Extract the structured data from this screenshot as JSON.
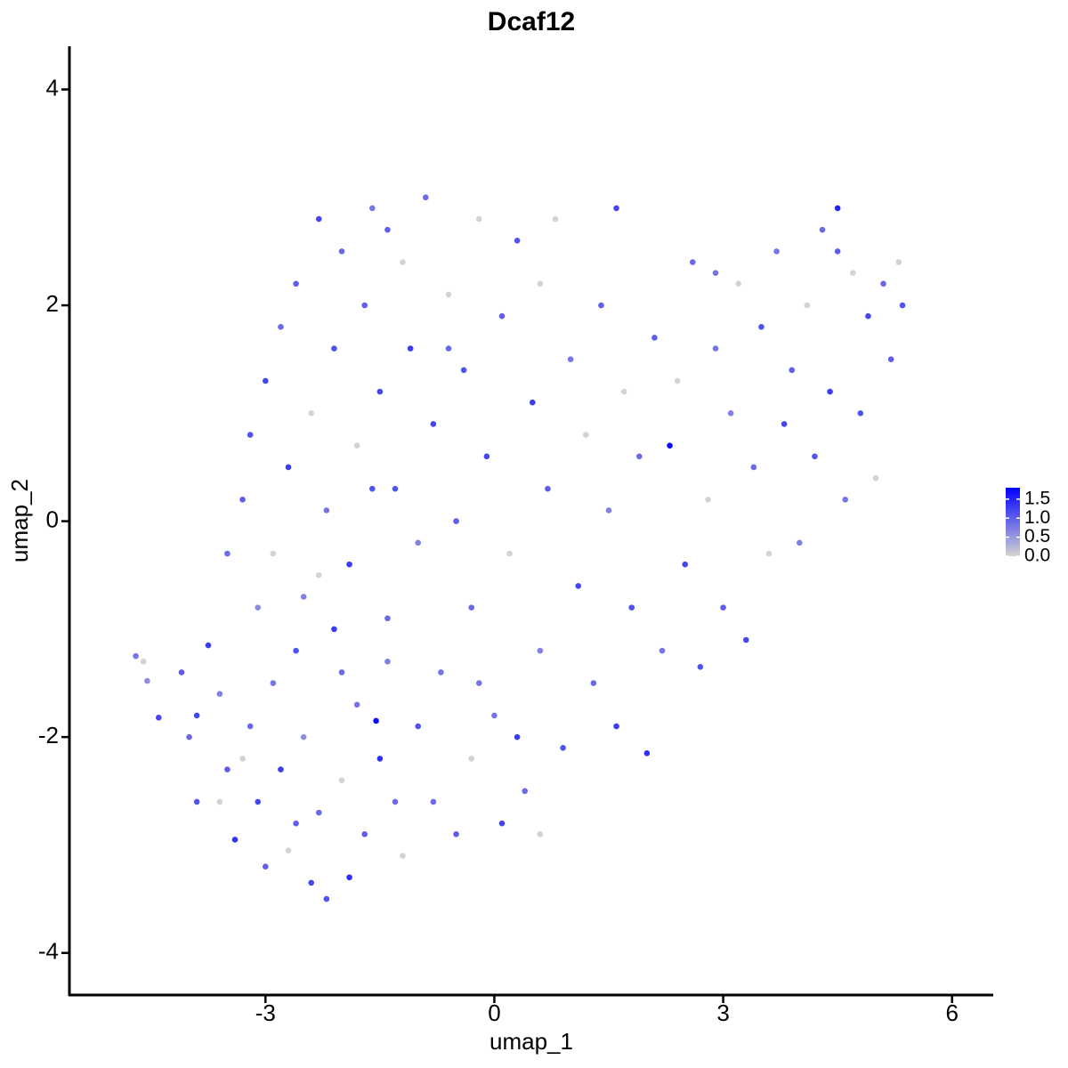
{
  "chart_data": {
    "type": "scatter",
    "title": "Dcaf12",
    "x_label": "umap_1",
    "y_label": "umap_2",
    "xlim": [
      -5.57,
      6.54
    ],
    "ylim": [
      -4.39,
      4.4
    ],
    "xticks": [
      -3,
      0,
      3,
      6
    ],
    "yticks": [
      -4,
      -2,
      0,
      2,
      4
    ],
    "color_low": "#d3d3d3",
    "color_high": "#0000ff",
    "colorbar_lim": [
      0,
      1.8
    ],
    "colorbar_ticks": [
      {
        "value": 0,
        "label": "0.0"
      },
      {
        "value": 0.5,
        "label": "0.5"
      },
      {
        "value": 1,
        "label": "1.0"
      },
      {
        "value": 1.5,
        "label": "1.5"
      }
    ],
    "x": [
      -4.7,
      -4.6,
      -4.55,
      -4.4,
      -4.1,
      -4.0,
      -3.9,
      -3.75,
      -3.6,
      -3.5,
      -3.4,
      -3.3,
      -3.2,
      -3.1,
      -3.0,
      -2.9,
      -2.8,
      -2.7,
      -2.6,
      -2.5,
      -2.4,
      -2.3,
      -2.2,
      -2.1,
      -2.0,
      -1.9,
      -1.8,
      -1.7,
      -1.55,
      -1.5,
      -1.4,
      -1.3,
      -1.2,
      -3.5,
      -3.3,
      -3.1,
      -3.2,
      -3.0,
      -2.9,
      -2.8,
      -2.7,
      -2.6,
      -2.5,
      -2.4,
      -2.3,
      -2.2,
      -2.1,
      -2.0,
      -1.9,
      -1.8,
      -1.7,
      -1.6,
      -1.5,
      -1.4,
      -1.3,
      -1.2,
      -1.1,
      -1.0,
      -0.9,
      -0.8,
      -0.7,
      -0.6,
      -0.5,
      -0.4,
      -0.3,
      -0.2,
      -0.1,
      0.0,
      0.1,
      0.2,
      0.3,
      0.4,
      0.5,
      0.6,
      0.7,
      0.8,
      0.9,
      1.0,
      1.1,
      1.2,
      1.3,
      1.4,
      1.5,
      1.6,
      1.7,
      1.8,
      1.9,
      2.0,
      2.1,
      2.2,
      2.3,
      2.4,
      2.5,
      2.6,
      2.7,
      2.8,
      2.9,
      3.0,
      3.1,
      3.2,
      3.3,
      3.4,
      3.5,
      3.6,
      3.7,
      3.8,
      3.9,
      4.0,
      4.1,
      4.2,
      4.3,
      4.4,
      4.5,
      4.6,
      4.7,
      4.8,
      4.9,
      5.0,
      5.1,
      5.2,
      5.3,
      5.35,
      -0.5,
      -0.3,
      0.1,
      -0.8,
      0.6,
      -1.0,
      -0.2,
      0.3,
      -3.6,
      -2.6,
      -2.0,
      -3.9,
      -2.3,
      -1.6,
      -0.6,
      -1.4,
      0.6,
      1.6,
      2.9,
      4.5
    ],
    "y": [
      -1.25,
      -1.3,
      -1.48,
      -1.82,
      -1.4,
      -2.0,
      -2.6,
      -1.15,
      -1.6,
      -2.3,
      -2.95,
      -2.2,
      -1.9,
      -2.6,
      -3.2,
      -1.5,
      -2.3,
      -3.05,
      -1.2,
      -2.0,
      -3.35,
      -2.7,
      -3.5,
      -1.0,
      -2.4,
      -3.3,
      -1.7,
      -2.9,
      -1.85,
      -2.2,
      -1.3,
      -2.6,
      -3.1,
      -0.3,
      0.2,
      -0.8,
      0.8,
      1.3,
      -0.3,
      1.8,
      0.5,
      2.2,
      -0.7,
      1.0,
      2.8,
      0.1,
      1.6,
      2.5,
      -0.4,
      0.7,
      2.0,
      2.9,
      1.2,
      -0.9,
      0.3,
      2.4,
      1.6,
      -0.2,
      3.0,
      0.9,
      -1.4,
      2.1,
      0.0,
      1.4,
      -0.8,
      2.8,
      0.6,
      -1.8,
      1.9,
      -0.3,
      2.6,
      -2.5,
      1.1,
      -1.2,
      0.3,
      2.8,
      -2.1,
      1.5,
      -0.6,
      0.8,
      -1.5,
      2.0,
      0.1,
      -1.9,
      1.2,
      -0.8,
      0.6,
      -2.15,
      1.7,
      -1.2,
      0.7,
      1.3,
      -0.4,
      2.4,
      -1.35,
      0.2,
      1.6,
      -0.8,
      1.0,
      2.2,
      -1.1,
      0.5,
      1.8,
      -0.3,
      2.5,
      0.9,
      1.4,
      -0.2,
      2.0,
      0.6,
      2.7,
      1.2,
      2.9,
      0.2,
      2.3,
      1.0,
      1.9,
      0.4,
      2.2,
      1.5,
      2.4,
      2.0,
      -2.9,
      -2.2,
      -2.8,
      -2.6,
      -2.9,
      -1.9,
      -1.5,
      -2.0,
      -2.6,
      -2.8,
      -1.4,
      -1.8,
      -0.5,
      0.3,
      1.6,
      2.7,
      2.2,
      2.9,
      2.3,
      2.5
    ],
    "values": [
      0.8,
      0.0,
      0.6,
      1.2,
      1.0,
      0.9,
      1.1,
      1.3,
      0.7,
      1.0,
      1.4,
      0.0,
      0.9,
      1.2,
      1.0,
      0.8,
      1.3,
      0.0,
      1.1,
      0.6,
      1.2,
      0.9,
      1.1,
      1.3,
      0.0,
      1.4,
      0.8,
      1.0,
      1.7,
      1.4,
      0.7,
      0.9,
      0.0,
      0.9,
      1.0,
      0.6,
      1.1,
      1.2,
      0.0,
      0.9,
      1.3,
      1.0,
      0.7,
      0.0,
      1.2,
      0.8,
      1.1,
      0.9,
      1.3,
      0.0,
      1.0,
      0.8,
      1.2,
      0.9,
      1.1,
      0.0,
      1.3,
      0.7,
      0.9,
      1.2,
      0.8,
      0.0,
      1.0,
      1.1,
      0.9,
      0.0,
      1.2,
      0.8,
      1.0,
      0.0,
      1.1,
      0.9,
      1.3,
      0.7,
      1.0,
      0.0,
      1.1,
      0.8,
      1.2,
      0.0,
      0.9,
      1.0,
      0.7,
      1.3,
      0.0,
      1.1,
      0.9,
      1.4,
      1.0,
      0.8,
      1.7,
      0.0,
      1.2,
      0.9,
      1.1,
      0.0,
      0.8,
      1.0,
      0.7,
      0.0,
      1.2,
      0.9,
      1.1,
      0.0,
      0.8,
      1.2,
      1.0,
      0.7,
      0.0,
      1.1,
      0.9,
      1.3,
      1.5,
      0.8,
      0.0,
      1.1,
      1.2,
      0.0,
      0.9,
      1.0,
      0.0,
      1.1,
      1.0,
      0.0,
      1.2,
      0.9,
      0.0,
      1.1,
      0.8,
      1.3,
      0.0,
      1.0,
      0.9,
      1.2,
      0.0,
      1.1,
      0.9,
      1.0,
      0.0,
      1.2,
      0.8,
      1.0
    ]
  }
}
